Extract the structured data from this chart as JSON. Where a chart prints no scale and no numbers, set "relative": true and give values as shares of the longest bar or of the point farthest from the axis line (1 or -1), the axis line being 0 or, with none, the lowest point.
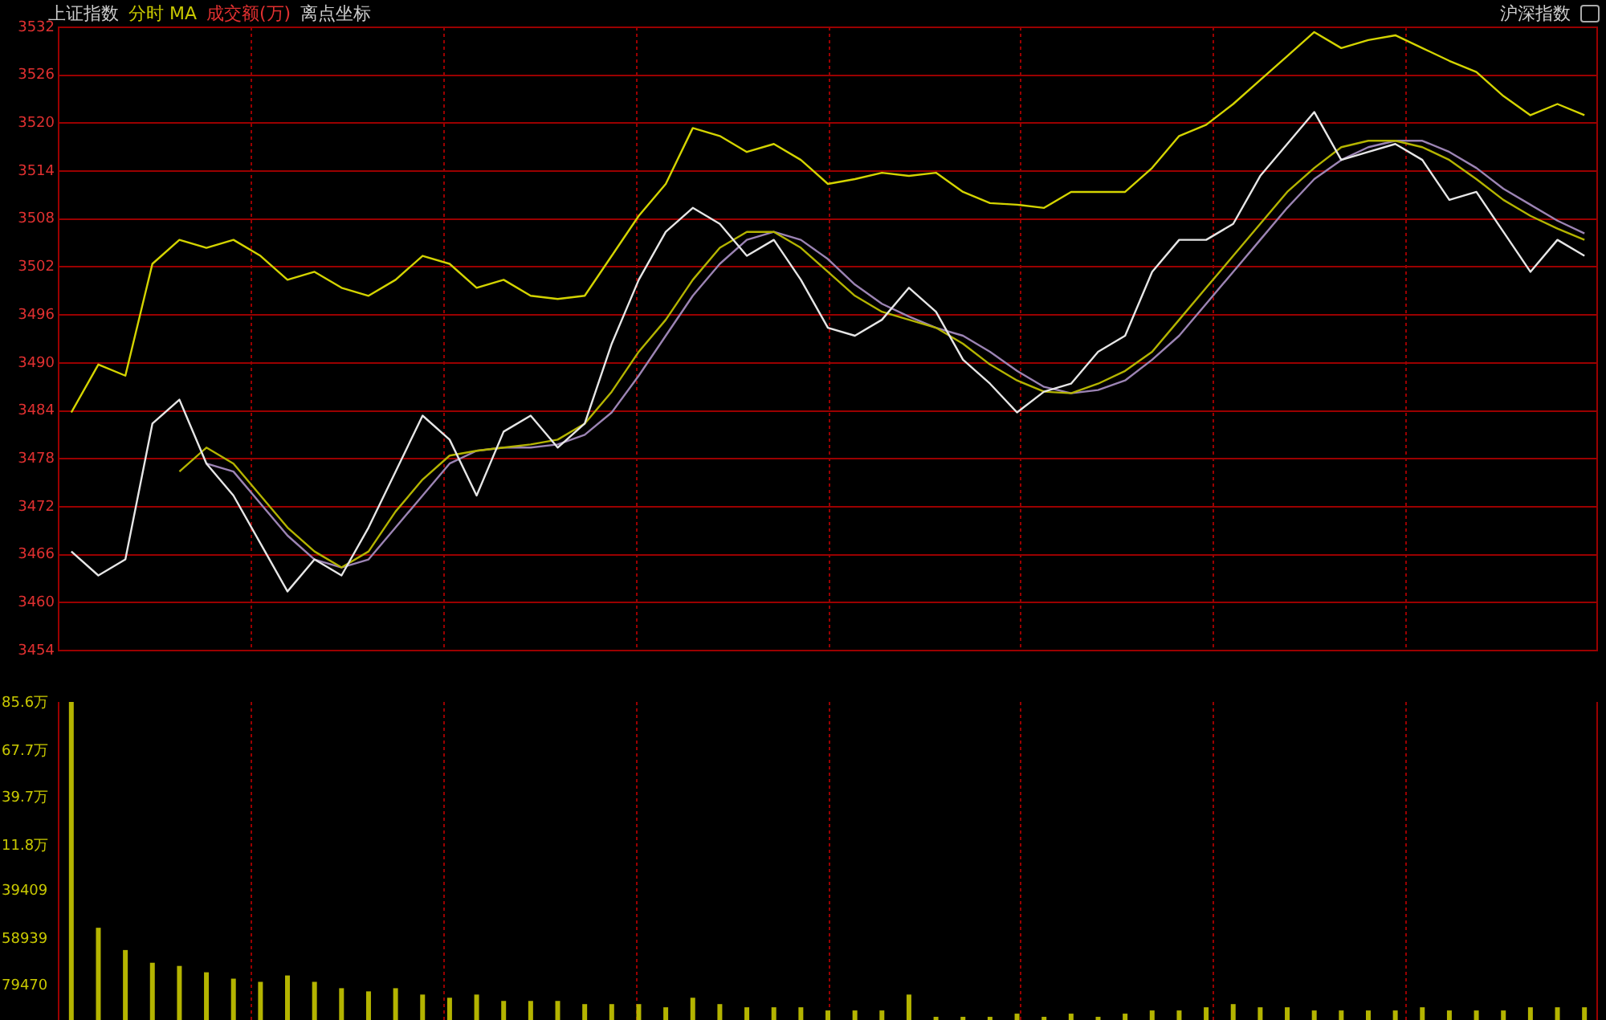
{
  "chart_data": [
    {
      "type": "line",
      "title": "上证指数",
      "annotations": [
        "分时 MA",
        "成交额(万)",
        "离点坐标",
        "沪深指数"
      ],
      "categories": [
        null,
        null,
        null,
        null,
        null,
        null,
        null,
        null,
        null,
        null,
        null,
        null,
        null,
        null,
        null,
        null,
        null,
        null,
        null,
        null,
        null,
        null,
        null,
        null,
        null,
        null,
        null,
        null,
        null,
        null,
        null,
        null,
        null,
        null,
        null,
        null,
        null,
        null,
        null,
        null,
        null,
        null,
        null,
        null,
        null,
        null,
        null,
        null,
        null,
        null,
        null,
        null,
        null,
        null,
        null,
        null,
        null
      ],
      "series": [
        {
          "color": "#d4d400",
          "values": [
            3483.8,
            3489.8,
            3488.4,
            3502.4,
            3505.4,
            3504.4,
            3505.4,
            3503.4,
            3500.4,
            3501.4,
            3499.4,
            3498.4,
            3500.4,
            3503.4,
            3502.4,
            3499.4,
            3500.4,
            3498.4,
            3498.0,
            3498.4,
            3503.4,
            3508.4,
            3512.4,
            3519.4,
            3518.4,
            3516.4,
            3517.4,
            3515.4,
            3512.4,
            3513.0,
            3513.8,
            3513.4,
            3513.8,
            3511.4,
            3510.0,
            3509.8,
            3509.4,
            3511.4,
            3511.4,
            3511.4,
            3514.4,
            3518.4,
            3519.8,
            3522.4,
            3525.4,
            3528.4,
            3531.4,
            3529.4,
            3530.4,
            3531.0,
            3529.4,
            3527.8,
            3526.4,
            3523.4,
            3521.0,
            3522.4,
            3521.0
          ]
        },
        {
          "color": "#e6e6e6",
          "values": [
            3466.4,
            3463.4,
            3465.4,
            3482.4,
            3485.4,
            3477.4,
            3473.4,
            3467.4,
            3461.4,
            3465.4,
            3463.4,
            3469.4,
            3476.4,
            3483.4,
            3480.4,
            3473.4,
            3481.4,
            3483.4,
            3479.4,
            3482.4,
            3492.4,
            3500.4,
            3506.4,
            3509.4,
            3507.4,
            3503.4,
            3505.4,
            3500.4,
            3494.4,
            3493.4,
            3495.4,
            3499.4,
            3496.4,
            3490.4,
            3487.4,
            3483.8,
            3486.4,
            3487.4,
            3491.4,
            3493.4,
            3501.4,
            3505.4,
            3505.4,
            3507.4,
            3513.4,
            3517.4,
            3521.4,
            3515.4,
            3516.4,
            3517.4,
            3515.4,
            3510.4,
            3511.4,
            3506.4,
            3501.4,
            3505.4,
            3503.4
          ]
        },
        {
          "color": "#b4b400",
          "values": [
            null,
            null,
            null,
            null,
            3476.4,
            3479.4,
            3477.4,
            3473.4,
            3469.4,
            3466.4,
            3464.4,
            3466.4,
            3471.4,
            3475.4,
            3478.4,
            3479.0,
            3479.4,
            3479.8,
            3480.4,
            3482.4,
            3486.4,
            3491.4,
            3495.4,
            3500.4,
            3504.4,
            3506.4,
            3506.4,
            3504.4,
            3501.4,
            3498.4,
            3496.4,
            3495.4,
            3494.4,
            3492.4,
            3489.8,
            3487.8,
            3486.4,
            3486.2,
            3487.4,
            3489.0,
            3491.4,
            3495.4,
            3499.4,
            3503.4,
            3507.4,
            3511.4,
            3514.4,
            3517.0,
            3517.8,
            3517.8,
            3517.0,
            3515.4,
            3513.0,
            3510.4,
            3508.4,
            3506.8,
            3505.4
          ]
        },
        {
          "color": "#9c84b4",
          "values": [
            null,
            null,
            null,
            null,
            null,
            3477.4,
            3476.4,
            3472.4,
            3468.4,
            3465.4,
            3464.4,
            3465.4,
            3469.4,
            3473.4,
            3477.4,
            3479.0,
            3479.4,
            3479.4,
            3479.8,
            3481.0,
            3483.8,
            3488.4,
            3493.4,
            3498.4,
            3502.4,
            3505.4,
            3506.4,
            3505.4,
            3503.0,
            3499.8,
            3497.4,
            3495.8,
            3494.4,
            3493.4,
            3491.4,
            3489.0,
            3487.0,
            3486.2,
            3486.6,
            3487.8,
            3490.4,
            3493.4,
            3497.4,
            3501.4,
            3505.4,
            3509.4,
            3513.0,
            3515.4,
            3517.0,
            3517.8,
            3517.8,
            3516.4,
            3514.4,
            3511.8,
            3509.8,
            3507.8,
            3506.2
          ]
        }
      ],
      "ylim": [
        3454,
        3532
      ],
      "yticks": [
        3532,
        3526,
        3520,
        3514,
        3508,
        3502,
        3496,
        3490,
        3484,
        3478,
        3472,
        3466,
        3460,
        3454
      ],
      "grid": true,
      "legend": false,
      "marker": "none",
      "line_style": "solid"
    },
    {
      "type": "bar",
      "categories": [
        null,
        null,
        null,
        null,
        null,
        null,
        null,
        null,
        null,
        null,
        null,
        null,
        null,
        null,
        null,
        null,
        null,
        null,
        null,
        null,
        null,
        null,
        null,
        null,
        null,
        null,
        null,
        null,
        null,
        null,
        null,
        null,
        null,
        null,
        null,
        null,
        null,
        null,
        null,
        null,
        null,
        null,
        null,
        null,
        null,
        null,
        null,
        null,
        null,
        null,
        null,
        null,
        null,
        null,
        null,
        null,
        null
      ],
      "values": [
        1,
        0.29,
        0.22,
        0.18,
        0.17,
        0.15,
        0.13,
        0.12,
        0.14,
        0.12,
        0.1,
        0.09,
        0.1,
        0.08,
        0.07,
        0.08,
        0.06,
        0.06,
        0.06,
        0.05,
        0.05,
        0.05,
        0.04,
        0.07,
        0.05,
        0.04,
        0.04,
        0.04,
        0.03,
        0.03,
        0.03,
        0.08,
        0.01,
        0.01,
        0.01,
        0.02,
        0.01,
        0.02,
        0.01,
        0.02,
        0.03,
        0.03,
        0.04,
        0.05,
        0.04,
        0.04,
        0.03,
        0.03,
        0.03,
        0.03,
        0.04,
        0.03,
        0.03,
        0.03,
        0.04,
        0.04,
        0.04
      ],
      "color": "#b4b400",
      "relative": true,
      "annotations": [
        "85.6万",
        "67.7万",
        "39.7万",
        "11.8万",
        "39409",
        "58939",
        "79470"
      ],
      "grid": "x",
      "legend": false
    }
  ]
}
